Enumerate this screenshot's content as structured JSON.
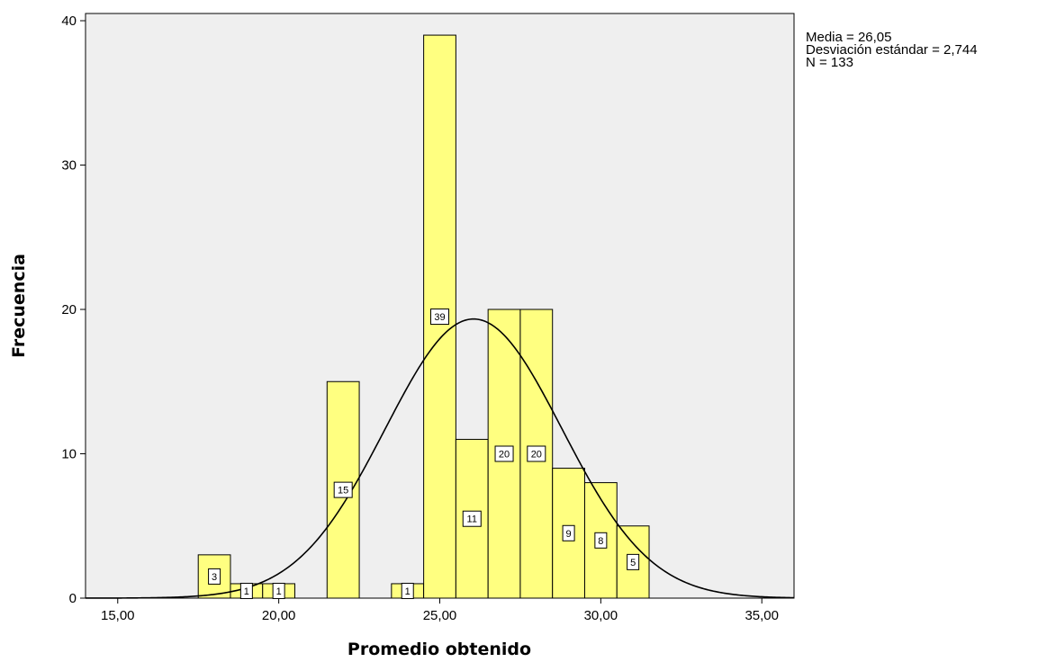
{
  "chart_data": {
    "type": "bar",
    "subtype": "histogram",
    "xlabel": "Promedio obtenido",
    "ylabel": "Frecuencia",
    "xlim": [
      14.0,
      36.0
    ],
    "ylim": [
      0,
      40.5
    ],
    "x_ticks": [
      15,
      20,
      25,
      30,
      35
    ],
    "x_tick_labels": [
      "15,00",
      "20,00",
      "25,00",
      "30,00",
      "35,00"
    ],
    "y_ticks": [
      0,
      10,
      20,
      30,
      40
    ],
    "y_tick_labels": [
      "0",
      "10",
      "20",
      "30",
      "40"
    ],
    "bin_width": 1.0,
    "bins": [
      {
        "center": 18.0,
        "value": 3,
        "label": "3"
      },
      {
        "center": 19.0,
        "value": 1,
        "label": "1"
      },
      {
        "center": 20.0,
        "value": 1,
        "label": "1"
      },
      {
        "center": 22.0,
        "value": 15,
        "label": "15"
      },
      {
        "center": 24.0,
        "value": 1,
        "label": "1"
      },
      {
        "center": 25.0,
        "value": 39,
        "label": "39"
      },
      {
        "center": 26.0,
        "value": 11,
        "label": "11"
      },
      {
        "center": 27.0,
        "value": 20,
        "label": "20"
      },
      {
        "center": 28.0,
        "value": 20,
        "label": "20"
      },
      {
        "center": 29.0,
        "value": 9,
        "label": "9"
      },
      {
        "center": 30.0,
        "value": 8,
        "label": "8"
      },
      {
        "center": 31.0,
        "value": 5,
        "label": "5"
      }
    ],
    "normal_curve": {
      "mean": 26.05,
      "sd": 2.744,
      "n": 133
    },
    "stats_text": [
      "Media = 26,05",
      "Desviación estándar = 2,744",
      "N = 133"
    ],
    "colors": {
      "bar_fill": "#ffff80",
      "bar_stroke": "#000000",
      "plot_bg": "#efefef",
      "curve": "#000000"
    },
    "grid": false,
    "legend": "none"
  }
}
